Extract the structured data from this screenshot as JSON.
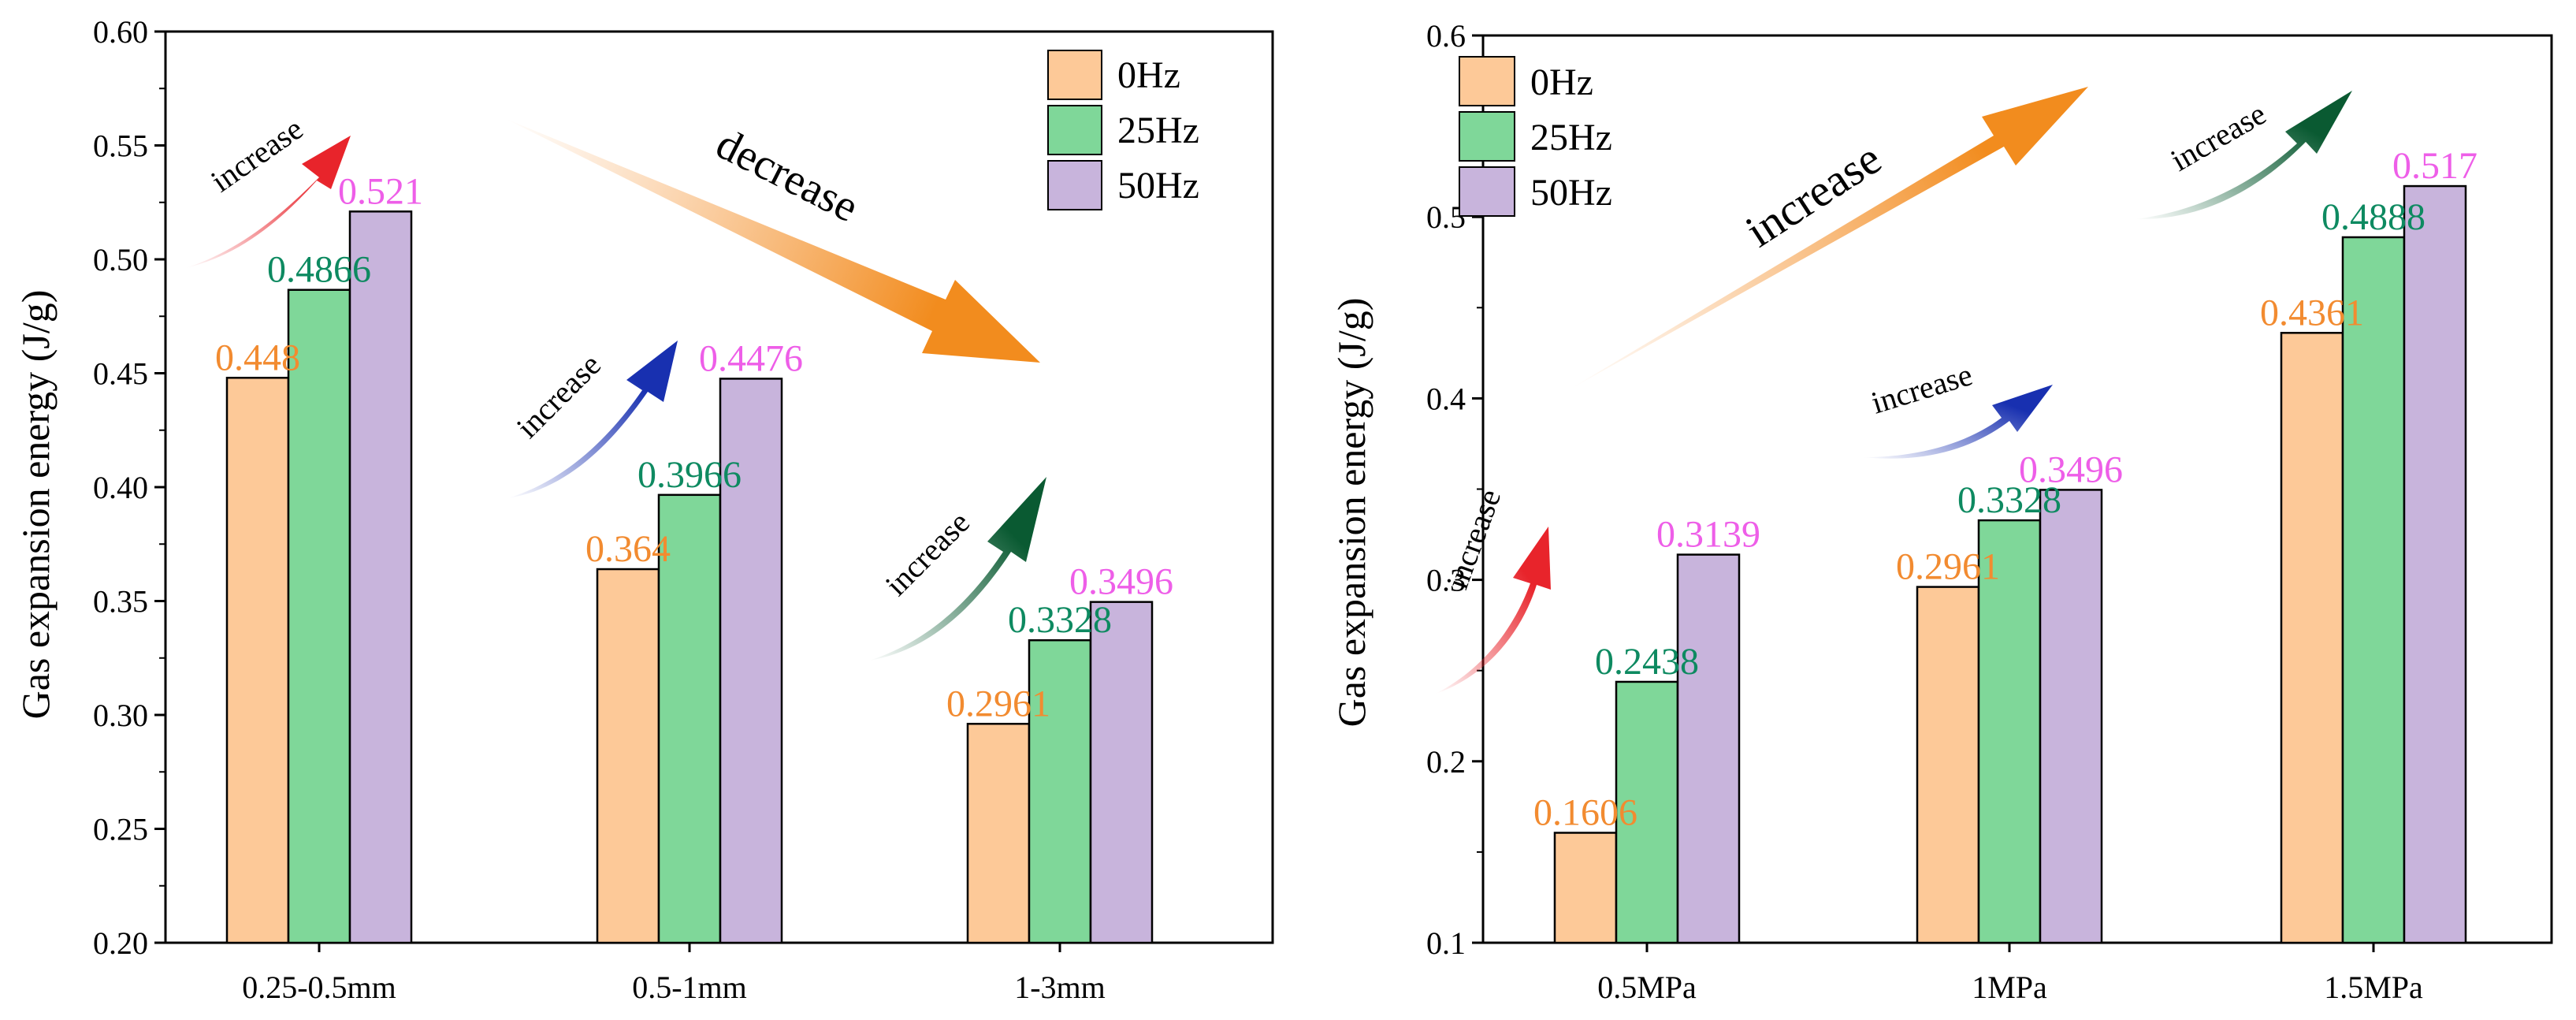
{
  "chart_data": [
    {
      "type": "bar",
      "title": "",
      "xlabel": "",
      "ylabel": "Gas expansion energy (J/g)",
      "ylim": [
        0.2,
        0.6
      ],
      "yticks": [
        0.2,
        0.25,
        0.3,
        0.35,
        0.4,
        0.45,
        0.5,
        0.55,
        0.6
      ],
      "ytick_decimals": 2,
      "categories": [
        "0.25-0.5mm",
        "0.5-1mm",
        "1-3mm"
      ],
      "series": [
        {
          "name": "0Hz",
          "values": [
            0.448,
            0.364,
            0.2961
          ],
          "labels": [
            "0.448",
            "0.364",
            "0.2961"
          ],
          "color": "#fdc998",
          "label_color": "#f28b30"
        },
        {
          "name": "25Hz",
          "values": [
            0.4866,
            0.3966,
            0.3328
          ],
          "labels": [
            "0.4866",
            "0.3966",
            "0.3328"
          ],
          "color": "#7fd799",
          "label_color": "#0e8a61"
        },
        {
          "name": "50Hz",
          "values": [
            0.521,
            0.4476,
            0.3496
          ],
          "labels": [
            "0.521",
            "0.4476",
            "0.3496"
          ],
          "color": "#c8b4dc",
          "label_color": "#ee5ee8"
        }
      ],
      "legend": "top-right",
      "annotations": [
        {
          "text": "increase",
          "arrow_color": "#e8242b"
        },
        {
          "text": "increase",
          "arrow_color": "#1830b0"
        },
        {
          "text": "increase",
          "arrow_color": "#0a5a32"
        },
        {
          "text": "decrease",
          "arrow_color": "#f28c1e"
        }
      ]
    },
    {
      "type": "bar",
      "title": "",
      "xlabel": "",
      "ylabel": "Gas expansion energy (J/g)",
      "ylim": [
        0.1,
        0.6
      ],
      "yticks": [
        0.1,
        0.2,
        0.3,
        0.4,
        0.5,
        0.6
      ],
      "ytick_decimals": 1,
      "categories": [
        "0.5MPa",
        "1MPa",
        "1.5MPa"
      ],
      "series": [
        {
          "name": "0Hz",
          "values": [
            0.1606,
            0.2961,
            0.4361
          ],
          "labels": [
            "0.1606",
            "0.2961",
            "0.4361"
          ],
          "color": "#fdc998",
          "label_color": "#f28b30"
        },
        {
          "name": "25Hz",
          "values": [
            0.2438,
            0.3328,
            0.4888
          ],
          "labels": [
            "0.2438",
            "0.3328",
            "0.4888"
          ],
          "color": "#7fd799",
          "label_color": "#0e8a61"
        },
        {
          "name": "50Hz",
          "values": [
            0.3139,
            0.3496,
            0.517
          ],
          "labels": [
            "0.3139",
            "0.3496",
            "0.517"
          ],
          "color": "#c8b4dc",
          "label_color": "#ee5ee8"
        }
      ],
      "legend": "top-left",
      "annotations": [
        {
          "text": "increase",
          "arrow_color": "#e8242b"
        },
        {
          "text": "increase",
          "arrow_color": "#1830b0"
        },
        {
          "text": "increase",
          "arrow_color": "#0a5a32"
        },
        {
          "text": "increase",
          "arrow_color": "#f28c1e"
        }
      ]
    }
  ]
}
